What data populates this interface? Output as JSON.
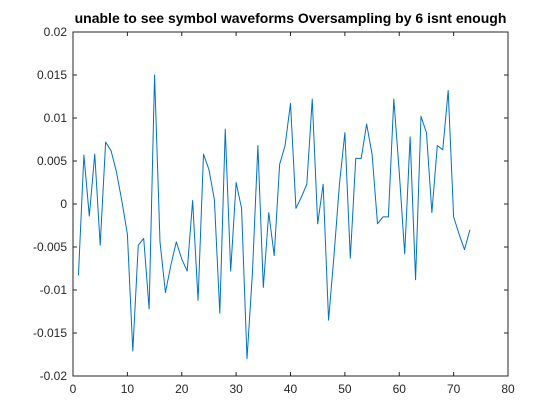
{
  "chart_data": {
    "type": "line",
    "title": "unable to see symbol waveforms Oversampling by 6 isnt enough",
    "xlabel": "",
    "ylabel": "",
    "xlim": [
      0,
      80
    ],
    "ylim": [
      -0.02,
      0.02
    ],
    "xticks": [
      0,
      10,
      20,
      30,
      40,
      50,
      60,
      70,
      80
    ],
    "yticks": [
      -0.02,
      -0.015,
      -0.01,
      -0.005,
      0,
      0.005,
      0.01,
      0.015,
      0.02
    ],
    "xtick_labels": [
      "0",
      "10",
      "20",
      "30",
      "40",
      "50",
      "60",
      "70",
      "80"
    ],
    "ytick_labels": [
      "-0.02",
      "-0.015",
      "-0.01",
      "-0.005",
      "0",
      "0.005",
      "0.01",
      "0.015",
      "0.02"
    ],
    "grid": false,
    "line_color": "#0072BD",
    "series": [
      {
        "name": "",
        "x": [
          1,
          2,
          3,
          4,
          5,
          6,
          7,
          8,
          9,
          10,
          11,
          12,
          13,
          14,
          15,
          16,
          17,
          18,
          19,
          20,
          21,
          22,
          23,
          24,
          25,
          26,
          27,
          28,
          29,
          30,
          31,
          32,
          33,
          34,
          35,
          36,
          37,
          38,
          39,
          40,
          41,
          42,
          43,
          44,
          45,
          46,
          47,
          48,
          49,
          50,
          51,
          52,
          53,
          54,
          55,
          56,
          57,
          58,
          59,
          60,
          61,
          62,
          63,
          64,
          65,
          66,
          67,
          68,
          69,
          70,
          71,
          72,
          73
        ],
        "y": [
          -0.0083,
          0.0057,
          -0.0014,
          0.0058,
          -0.0048,
          0.0072,
          0.0062,
          0.0037,
          0.0003,
          -0.0035,
          -0.0171,
          -0.0048,
          -0.004,
          -0.0122,
          0.015,
          -0.0044,
          -0.0103,
          -0.0071,
          -0.0044,
          -0.0064,
          -0.0078,
          0.0004,
          -0.0112,
          0.0058,
          0.004,
          0.0005,
          -0.0127,
          0.0087,
          -0.0078,
          0.0025,
          -0.0005,
          -0.018,
          -0.008,
          0.0068,
          -0.0097,
          -0.001,
          -0.006,
          0.0046,
          0.0068,
          0.0117,
          -0.0005,
          0.0008,
          0.0023,
          0.0122,
          -0.0023,
          0.0023,
          -0.0135,
          -0.006,
          0.0023,
          0.0083,
          -0.0063,
          0.0053,
          0.0053,
          0.0093,
          0.0058,
          -0.0023,
          -0.0015,
          -0.0015,
          0.0122,
          0.0037,
          -0.0058,
          0.0078,
          -0.0088,
          0.0102,
          0.0083,
          -0.001,
          0.0068,
          0.0063,
          0.0132,
          -0.0015,
          -0.0035,
          -0.0053,
          -0.003
        ]
      }
    ]
  }
}
